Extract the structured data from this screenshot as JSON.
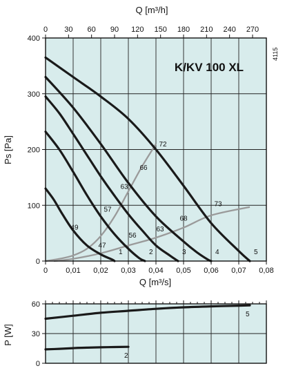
{
  "chart_data": [
    {
      "type": "line",
      "title": "K/KV 100 XL",
      "side_label": "4115",
      "xlabel": "Q [m³/s]",
      "x2label": "Q [m³/h]",
      "ylabel": "Ps [Pa]",
      "xlim": [
        0,
        0.08
      ],
      "x2lim": [
        0,
        288
      ],
      "ylim": [
        0,
        400
      ],
      "x_ticks": [
        "0",
        "0,01",
        "0,02",
        "0,03",
        "0,04",
        "0,05",
        "0,06",
        "0,07",
        "0,08"
      ],
      "x2_ticks": [
        "0",
        "30",
        "60",
        "90",
        "120",
        "150",
        "180",
        "210",
        "240",
        "270"
      ],
      "y_ticks": [
        "0",
        "100",
        "200",
        "300",
        "400"
      ],
      "grid": true,
      "background": "#d8ecec",
      "fan_curves": [
        {
          "label": "1",
          "points": [
            [
              0,
              130
            ],
            [
              0.003,
              110
            ],
            [
              0.006,
              85
            ],
            [
              0.01,
              55
            ],
            [
              0.015,
              28
            ],
            [
              0.02,
              12
            ],
            [
              0.024,
              3
            ],
            [
              0.025,
              0
            ]
          ]
        },
        {
          "label": "2",
          "points": [
            [
              0,
              232
            ],
            [
              0.005,
              200
            ],
            [
              0.01,
              160
            ],
            [
              0.015,
              118
            ],
            [
              0.02,
              80
            ],
            [
              0.025,
              48
            ],
            [
              0.03,
              22
            ],
            [
              0.034,
              5
            ],
            [
              0.036,
              0
            ]
          ]
        },
        {
          "label": "3",
          "points": [
            [
              0,
              295
            ],
            [
              0.005,
              265
            ],
            [
              0.01,
              228
            ],
            [
              0.015,
              190
            ],
            [
              0.02,
              152
            ],
            [
              0.025,
              117
            ],
            [
              0.03,
              84
            ],
            [
              0.035,
              55
            ],
            [
              0.04,
              28
            ],
            [
              0.045,
              10
            ],
            [
              0.048,
              0
            ]
          ]
        },
        {
          "label": "4",
          "points": [
            [
              0,
              330
            ],
            [
              0.01,
              275
            ],
            [
              0.02,
              210
            ],
            [
              0.03,
              140
            ],
            [
              0.04,
              80
            ],
            [
              0.05,
              35
            ],
            [
              0.055,
              15
            ],
            [
              0.059,
              2
            ],
            [
              0.06,
              0
            ]
          ]
        },
        {
          "label": "5",
          "points": [
            [
              0,
              365
            ],
            [
              0.01,
              330
            ],
            [
              0.02,
              295
            ],
            [
              0.03,
              255
            ],
            [
              0.04,
              200
            ],
            [
              0.05,
              135
            ],
            [
              0.06,
              68
            ],
            [
              0.07,
              18
            ],
            [
              0.074,
              0
            ]
          ]
        }
      ],
      "system_curves": [
        {
          "points": [
            [
              0,
              0
            ],
            [
              0.005,
              4
            ],
            [
              0.01,
              10
            ],
            [
              0.015,
              22
            ],
            [
              0.02,
              45
            ],
            [
              0.025,
              80
            ],
            [
              0.03,
              125
            ],
            [
              0.035,
              170
            ],
            [
              0.04,
              210
            ]
          ]
        },
        {
          "points": [
            [
              0.003,
              0
            ],
            [
              0.01,
              4
            ],
            [
              0.02,
              14
            ],
            [
              0.03,
              28
            ],
            [
              0.04,
              42
            ],
            [
              0.05,
              60
            ],
            [
              0.06,
              82
            ],
            [
              0.074,
              97
            ]
          ]
        }
      ],
      "annotations": [
        {
          "text": "49",
          "x": 0.0105,
          "y": 60
        },
        {
          "text": "47",
          "x": 0.0205,
          "y": 28
        },
        {
          "text": "57",
          "x": 0.0225,
          "y": 92
        },
        {
          "text": "56",
          "x": 0.0315,
          "y": 46
        },
        {
          "text": "63",
          "x": 0.0285,
          "y": 133
        },
        {
          "text": "66",
          "x": 0.0355,
          "y": 167
        },
        {
          "text": "63",
          "x": 0.0415,
          "y": 57
        },
        {
          "text": "68",
          "x": 0.05,
          "y": 76
        },
        {
          "text": "72",
          "x": 0.0425,
          "y": 209
        },
        {
          "text": "73",
          "x": 0.0625,
          "y": 102
        }
      ]
    },
    {
      "type": "line",
      "ylabel": "P [W]",
      "xlim": [
        0,
        0.08
      ],
      "ylim": [
        0,
        60
      ],
      "y_ticks": [
        "0",
        "30",
        "60"
      ],
      "grid": true,
      "series": [
        {
          "label": "5",
          "points": [
            [
              0,
              45
            ],
            [
              0.01,
              48
            ],
            [
              0.02,
              51
            ],
            [
              0.03,
              53
            ],
            [
              0.04,
              55
            ],
            [
              0.05,
              56.5
            ],
            [
              0.06,
              57.5
            ],
            [
              0.07,
              58.2
            ],
            [
              0.074,
              58.5
            ]
          ]
        },
        {
          "label": "2",
          "points": [
            [
              0,
              14
            ],
            [
              0.005,
              14.6
            ],
            [
              0.01,
              15.3
            ],
            [
              0.015,
              15.8
            ],
            [
              0.02,
              16.1
            ],
            [
              0.025,
              16.4
            ],
            [
              0.03,
              16.6
            ]
          ]
        }
      ]
    }
  ]
}
